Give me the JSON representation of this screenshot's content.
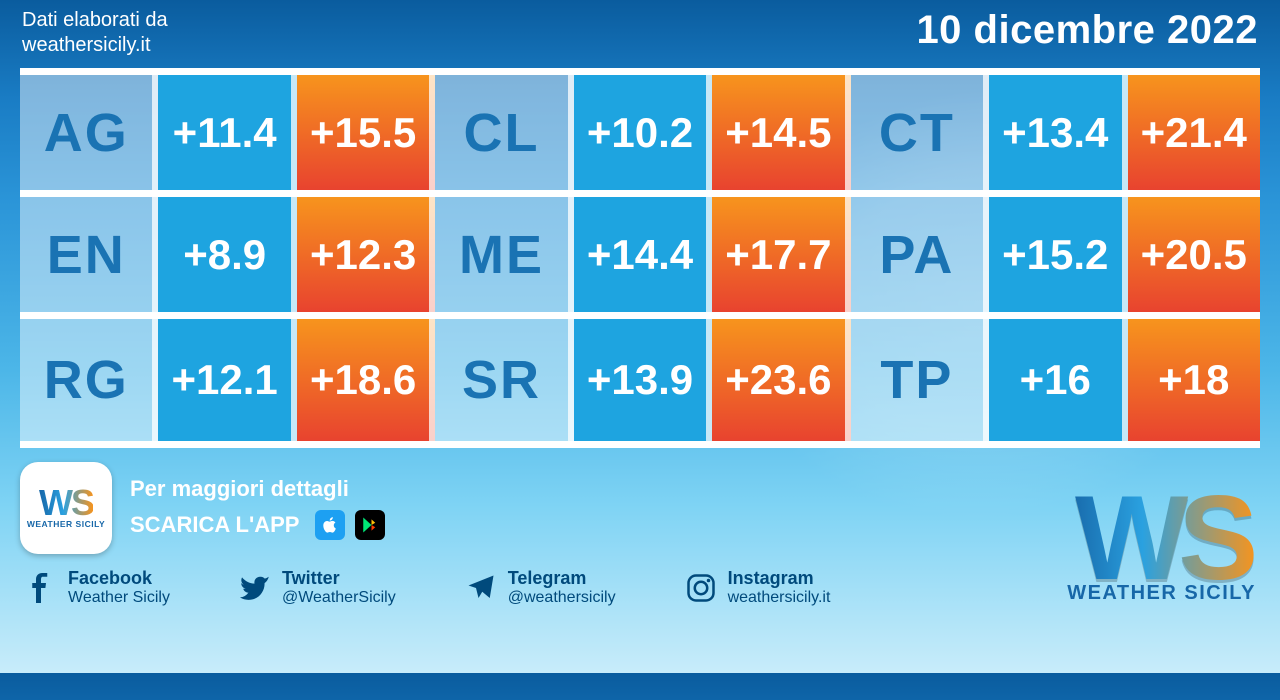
{
  "header": {
    "source_label": "Dati elaborati da",
    "site": "weathersicily.it",
    "date": "10 dicembre 2022"
  },
  "style": {
    "code_bg": "rgba(255,255,255,0.45)",
    "code_color": "#1a73b3",
    "min_bg": "#1ea4e0",
    "max_bg_gradient_top": "#f7941d",
    "max_bg_gradient_bottom": "#e8432f",
    "value_color": "#ffffff",
    "row_divider_color": "#ffffff",
    "code_fontsize": 54,
    "value_fontsize": 42
  },
  "grid": {
    "rows": [
      [
        {
          "code": "AG",
          "min": "+11.4",
          "max": "+15.5"
        },
        {
          "code": "CL",
          "min": "+10.2",
          "max": "+14.5"
        },
        {
          "code": "CT",
          "min": "+13.4",
          "max": "+21.4"
        }
      ],
      [
        {
          "code": "EN",
          "min": "+8.9",
          "max": "+12.3"
        },
        {
          "code": "ME",
          "min": "+14.4",
          "max": "+17.7"
        },
        {
          "code": "PA",
          "min": "+15.2",
          "max": "+20.5"
        }
      ],
      [
        {
          "code": "RG",
          "min": "+12.1",
          "max": "+18.6"
        },
        {
          "code": "SR",
          "min": "+13.9",
          "max": "+23.6"
        },
        {
          "code": "TP",
          "min": "+16",
          "max": "+18"
        }
      ]
    ]
  },
  "app": {
    "line1": "Per maggiori dettagli",
    "line2": "SCARICA L'APP",
    "logo_text": "WS",
    "logo_sub": "WEATHER SICILY"
  },
  "brand": {
    "logo_text": "WS",
    "logo_sub": "WEATHER SICILY"
  },
  "socials": {
    "facebook": {
      "name": "Facebook",
      "handle": "Weather Sicily"
    },
    "twitter": {
      "name": "Twitter",
      "handle": "@WeatherSicily"
    },
    "telegram": {
      "name": "Telegram",
      "handle": "@weathersicily"
    },
    "instagram": {
      "name": "Instagram",
      "handle": "weathersicily.it"
    }
  }
}
